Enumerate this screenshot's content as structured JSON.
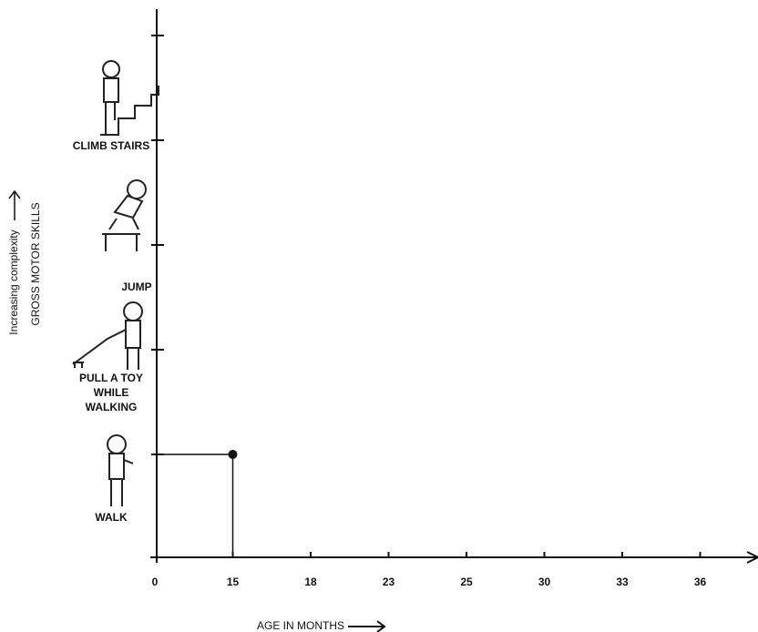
{
  "chart_data": {
    "type": "scatter",
    "x_label": "AGE IN MONTHS",
    "y_label": [
      "Increasing complexity",
      "GROSS MOTOR SKILLS"
    ],
    "xticks": [
      0,
      15,
      18,
      23,
      25,
      30,
      33,
      36
    ],
    "categories": [
      "WALK",
      "PULL A TOY WHILE WALKING",
      "JUMP",
      "CLIMB STAIRS",
      null
    ],
    "series": [
      {
        "x": [
          15
        ],
        "y": [
          "WALK"
        ],
        "color": "#111111"
      }
    ]
  }
}
